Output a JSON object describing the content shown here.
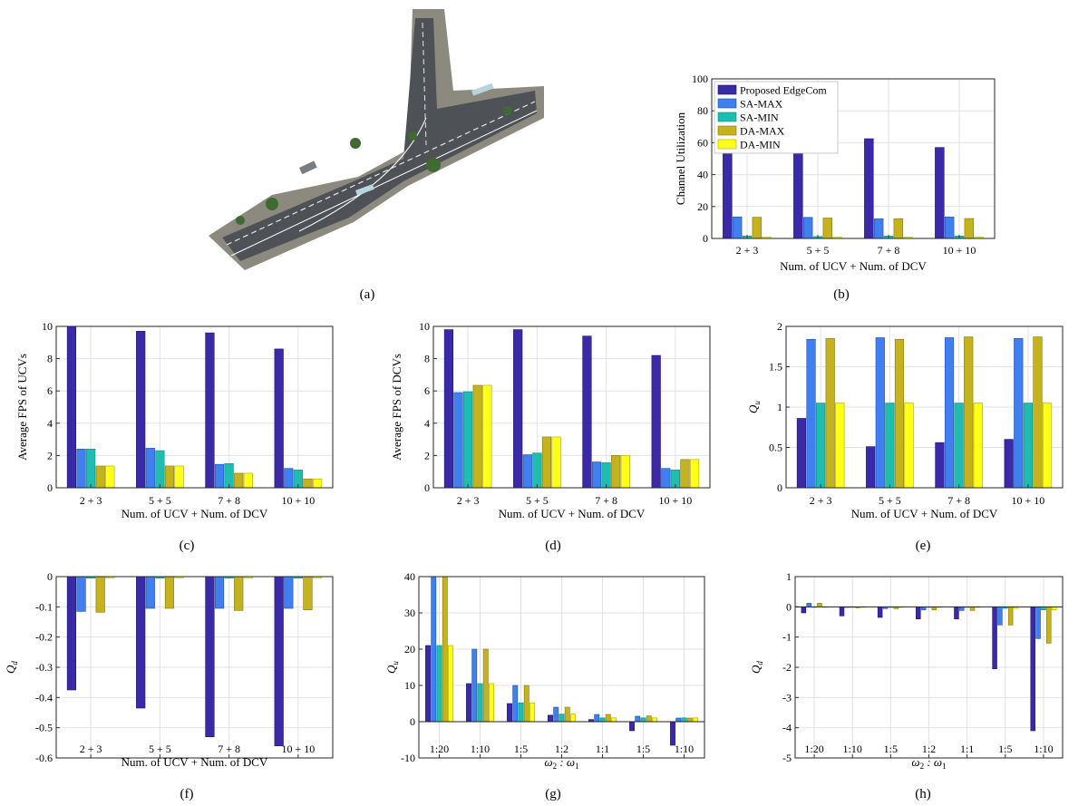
{
  "colors": {
    "proposed": "#3b2aa8",
    "sa_max": "#3f7ff0",
    "sa_min": "#1fbcb0",
    "da_max": "#c4b21e",
    "da_min": "#ffff19"
  },
  "panel_a": {
    "caption": "(a)",
    "image": "aerial-road-intersection-map"
  },
  "chart_data": [
    {
      "id": "b",
      "caption": "(b)",
      "type": "bar",
      "xlabel": "Num. of UCV + Num. of DCV",
      "ylabel": "Channel Utilization",
      "categories": [
        "2 + 3",
        "5 + 5",
        "7 + 8",
        "10 + 10"
      ],
      "ylim": [
        0,
        100
      ],
      "yticks": [
        "0",
        "20",
        "40",
        "60",
        "80",
        "100"
      ],
      "ytick_values": [
        0,
        20,
        40,
        60,
        80,
        100
      ],
      "grid": true,
      "legend": "top-left",
      "series": [
        {
          "name": "Proposed EdgeCom",
          "values": [
            54,
            62.5,
            62.5,
            57
          ]
        },
        {
          "name": "SA-MAX",
          "values": [
            13.5,
            13.2,
            12.3,
            13.5
          ]
        },
        {
          "name": "SA-MIN",
          "values": [
            1.5,
            1.2,
            1.5,
            1.5
          ]
        },
        {
          "name": "DA-MAX",
          "values": [
            13.3,
            12.8,
            12.4,
            12.5
          ]
        },
        {
          "name": "DA-MIN",
          "values": [
            0.8,
            0.8,
            0.8,
            0.8
          ]
        }
      ]
    },
    {
      "id": "c",
      "caption": "(c)",
      "type": "bar",
      "xlabel": "Num. of UCV + Num. of DCV",
      "ylabel": "Average FPS of UCVs",
      "categories": [
        "2 + 3",
        "5 + 5",
        "7 + 8",
        "10 + 10"
      ],
      "ylim": [
        0,
        10
      ],
      "yticks": [
        "0",
        "2",
        "4",
        "6",
        "8",
        "10"
      ],
      "ytick_values": [
        0,
        2,
        4,
        6,
        8,
        10
      ],
      "grid": true,
      "series": [
        {
          "values": [
            10,
            9.7,
            9.6,
            8.6
          ]
        },
        {
          "values": [
            2.4,
            2.45,
            1.45,
            1.2
          ]
        },
        {
          "values": [
            2.4,
            2.3,
            1.5,
            1.1
          ]
        },
        {
          "values": [
            1.35,
            1.35,
            0.9,
            0.55
          ]
        },
        {
          "values": [
            1.35,
            1.35,
            0.9,
            0.55
          ]
        }
      ]
    },
    {
      "id": "d",
      "caption": "(d)",
      "type": "bar",
      "xlabel": "Num. of UCV + Num. of DCV",
      "ylabel": "Average FPS of DCVs",
      "categories": [
        "2 + 3",
        "5 + 5",
        "7 + 8",
        "10 + 10"
      ],
      "ylim": [
        0,
        10
      ],
      "yticks": [
        "0",
        "2",
        "4",
        "6",
        "8",
        "10"
      ],
      "ytick_values": [
        0,
        2,
        4,
        6,
        8,
        10
      ],
      "grid": true,
      "series": [
        {
          "values": [
            9.8,
            9.8,
            9.4,
            8.2
          ]
        },
        {
          "values": [
            5.9,
            2.05,
            1.6,
            1.2
          ]
        },
        {
          "values": [
            5.95,
            2.15,
            1.55,
            1.1
          ]
        },
        {
          "values": [
            6.35,
            3.15,
            2.0,
            1.75
          ]
        },
        {
          "values": [
            6.35,
            3.15,
            2.0,
            1.75
          ]
        }
      ]
    },
    {
      "id": "e",
      "caption": "(e)",
      "type": "bar",
      "xlabel": "Num. of UCV + Num. of DCV",
      "ylabel": "Q_u",
      "categories": [
        "2 + 3",
        "5 + 5",
        "7 + 8",
        "10 + 10"
      ],
      "ylim": [
        0,
        2
      ],
      "yticks": [
        "0",
        "0.5",
        "1",
        "1.5",
        "2"
      ],
      "ytick_values": [
        0,
        0.5,
        1,
        1.5,
        2
      ],
      "grid": true,
      "series": [
        {
          "values": [
            0.86,
            0.51,
            0.56,
            0.6
          ]
        },
        {
          "values": [
            1.84,
            1.86,
            1.86,
            1.85
          ]
        },
        {
          "values": [
            1.05,
            1.05,
            1.05,
            1.05
          ]
        },
        {
          "values": [
            1.85,
            1.84,
            1.87,
            1.87
          ]
        },
        {
          "values": [
            1.05,
            1.05,
            1.05,
            1.05
          ]
        }
      ]
    },
    {
      "id": "f",
      "caption": "(f)",
      "type": "bar",
      "xlabel": "Num. of UCV + Num. of DCV",
      "ylabel": "Q_d",
      "categories": [
        "2 + 3",
        "5 + 5",
        "7 + 8",
        "10 + 10"
      ],
      "ylim": [
        -0.6,
        0
      ],
      "yticks": [
        "-0.6",
        "-0.5",
        "-0.4",
        "-0.3",
        "-0.2",
        "-0.1",
        "0"
      ],
      "ytick_values": [
        -0.6,
        -0.5,
        -0.4,
        -0.3,
        -0.2,
        -0.1,
        0
      ],
      "grid": true,
      "series": [
        {
          "values": [
            -0.375,
            -0.435,
            -0.53,
            -0.56
          ]
        },
        {
          "values": [
            -0.115,
            -0.105,
            -0.105,
            -0.105
          ]
        },
        {
          "values": [
            -0.005,
            -0.005,
            -0.005,
            -0.005
          ]
        },
        {
          "values": [
            -0.118,
            -0.105,
            -0.112,
            -0.11
          ]
        },
        {
          "values": [
            -0.004,
            -0.004,
            -0.004,
            -0.004
          ]
        }
      ]
    },
    {
      "id": "g",
      "caption": "(g)",
      "type": "bar",
      "xlabel": "ω2 : ω1",
      "ylabel": "Q_u",
      "categories": [
        "1:20",
        "1:10",
        "1:5",
        "1:2",
        "1:1",
        "1:5",
        "1:10"
      ],
      "ylim": [
        -10,
        40
      ],
      "yticks": [
        "-10",
        "0",
        "10",
        "20",
        "30",
        "40"
      ],
      "ytick_values": [
        -10,
        0,
        10,
        20,
        30,
        40
      ],
      "grid": true,
      "series": [
        {
          "values": [
            21,
            10.5,
            5,
            1.8,
            0.6,
            -2.5,
            -6.5
          ]
        },
        {
          "values": [
            40,
            20,
            10,
            4,
            2,
            1.5,
            1
          ]
        },
        {
          "values": [
            21,
            10.5,
            5.2,
            2.1,
            1.05,
            1.05,
            1.05
          ]
        },
        {
          "values": [
            40,
            20,
            10,
            4,
            2,
            1.6,
            1
          ]
        },
        {
          "values": [
            21,
            10.5,
            5.2,
            2.1,
            1.05,
            1.05,
            1.05
          ]
        }
      ]
    },
    {
      "id": "h",
      "caption": "(h)",
      "type": "bar",
      "xlabel": "ω2 : ω1",
      "ylabel": "Q_d",
      "categories": [
        "1:20",
        "1:10",
        "1:5",
        "1:2",
        "1:1",
        "1:5",
        "1:10"
      ],
      "ylim": [
        -5,
        1
      ],
      "yticks": [
        "-5",
        "-4",
        "-3",
        "-2",
        "-1",
        "0",
        "1"
      ],
      "ytick_values": [
        -5,
        -4,
        -3,
        -2,
        -1,
        0,
        1
      ],
      "grid": true,
      "series": [
        {
          "values": [
            -0.2,
            -0.3,
            -0.35,
            -0.4,
            -0.4,
            -2.05,
            -4.1
          ]
        },
        {
          "values": [
            0.12,
            -0.02,
            -0.06,
            -0.1,
            -0.12,
            -0.6,
            -1.05
          ]
        },
        {
          "values": [
            -0.01,
            -0.01,
            -0.01,
            -0.01,
            -0.01,
            -0.05,
            -0.1
          ]
        },
        {
          "values": [
            0.12,
            -0.03,
            -0.06,
            -0.1,
            -0.12,
            -0.6,
            -1.2
          ]
        },
        {
          "values": [
            -0.01,
            -0.01,
            -0.01,
            -0.01,
            -0.01,
            -0.05,
            -0.1
          ]
        }
      ]
    }
  ]
}
